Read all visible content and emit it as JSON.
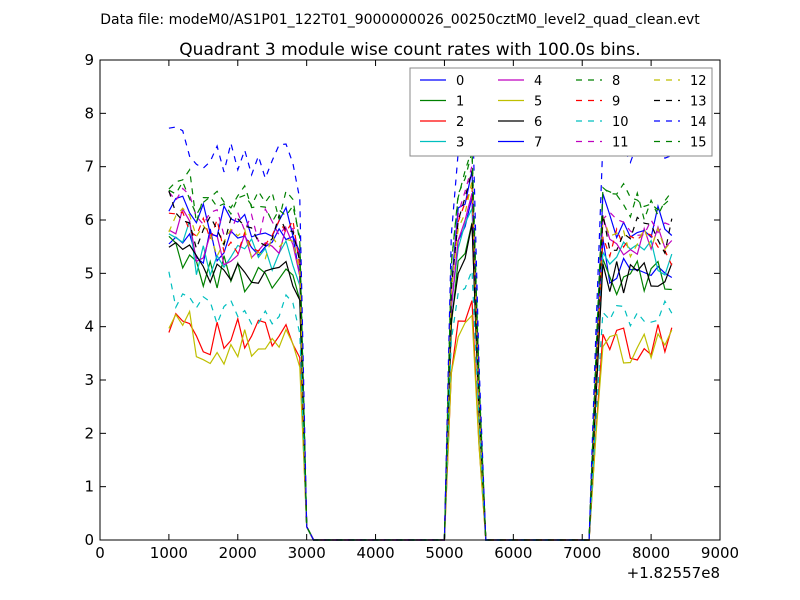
{
  "figure": {
    "suptitle": "Data file: modeM0/AS1P01_122T01_9000000026_00250cztM0_level2_quad_clean.evt",
    "offset_label": "+1.82557e8"
  },
  "chart_data": {
    "type": "line",
    "title": "Quadrant 3 module wise count rates with 100.0s bins.",
    "xlabel": "",
    "ylabel": "",
    "xlim": [
      0,
      9000
    ],
    "ylim": [
      0,
      9
    ],
    "x_offset": 182557000,
    "xticks": [
      0,
      1000,
      2000,
      3000,
      4000,
      5000,
      6000,
      7000,
      8000,
      9000
    ],
    "yticks": [
      0,
      1,
      2,
      3,
      4,
      5,
      6,
      7,
      8,
      9
    ],
    "xtick_labels": [
      "0",
      "1000",
      "2000",
      "3000",
      "4000",
      "5000",
      "6000",
      "7000",
      "8000",
      "9000"
    ],
    "ytick_labels": [
      "0",
      "1",
      "2",
      "3",
      "4",
      "5",
      "6",
      "7",
      "8",
      "9"
    ],
    "grid": false,
    "legend_location": "top-right",
    "legend_columns": 4,
    "segments": [
      {
        "start": 1000,
        "end": 2900,
        "step": 100
      },
      {
        "start": 3000,
        "end": 4900,
        "step": 100,
        "zero": true
      },
      {
        "start": 5000,
        "end": 5600,
        "step": 100
      },
      {
        "start": 5700,
        "end": 7100,
        "step": 100,
        "zero": true
      },
      {
        "start": 7200,
        "end": 8300,
        "step": 100
      }
    ],
    "series": [
      {
        "name": "0",
        "color": "#0000ff",
        "dash": "solid",
        "base": 5.5,
        "peak": 5.9,
        "tail": 5.1
      },
      {
        "name": "1",
        "color": "#008000",
        "dash": "solid",
        "base": 5.0,
        "peak": 5.5,
        "tail": 4.9
      },
      {
        "name": "2",
        "color": "#ff0000",
        "dash": "solid",
        "base": 3.8,
        "peak": 4.2,
        "tail": 3.7
      },
      {
        "name": "3",
        "color": "#00bfbf",
        "dash": "solid",
        "base": 5.3,
        "peak": 5.8,
        "tail": 5.3
      },
      {
        "name": "4",
        "color": "#bf00bf",
        "dash": "solid",
        "base": 5.5,
        "peak": 6.0,
        "tail": 5.6
      },
      {
        "name": "5",
        "color": "#bfbf00",
        "dash": "solid",
        "base": 3.6,
        "peak": 4.0,
        "tail": 3.6
      },
      {
        "name": "6",
        "color": "#000000",
        "dash": "solid",
        "base": 5.0,
        "peak": 5.4,
        "tail": 4.9
      },
      {
        "name": "7",
        "color": "#0000ff",
        "dash": "solid",
        "base": 6.0,
        "peak": 6.4,
        "tail": 6.0
      },
      {
        "name": "8",
        "color": "#008000",
        "dash": "dashed",
        "base": 6.3,
        "peak": 6.8,
        "tail": 6.4
      },
      {
        "name": "9",
        "color": "#ff0000",
        "dash": "dashed",
        "base": 5.7,
        "peak": 6.2,
        "tail": 5.5
      },
      {
        "name": "10",
        "color": "#00bfbf",
        "dash": "dashed",
        "base": 4.3,
        "peak": 4.8,
        "tail": 4.2
      },
      {
        "name": "11",
        "color": "#bf00bf",
        "dash": "dashed",
        "base": 5.9,
        "peak": 6.4,
        "tail": 5.8
      },
      {
        "name": "12",
        "color": "#bfbf00",
        "dash": "dashed",
        "base": 5.6,
        "peak": 6.1,
        "tail": 5.6
      },
      {
        "name": "13",
        "color": "#000000",
        "dash": "dashed",
        "base": 5.8,
        "peak": 6.3,
        "tail": 5.7
      },
      {
        "name": "14",
        "color": "#0000ff",
        "dash": "dashed",
        "base": 7.1,
        "peak": 7.7,
        "tail": 7.2
      },
      {
        "name": "15",
        "color": "#008000",
        "dash": "dashed",
        "base": 6.2,
        "peak": 6.8,
        "tail": 6.3
      }
    ]
  }
}
